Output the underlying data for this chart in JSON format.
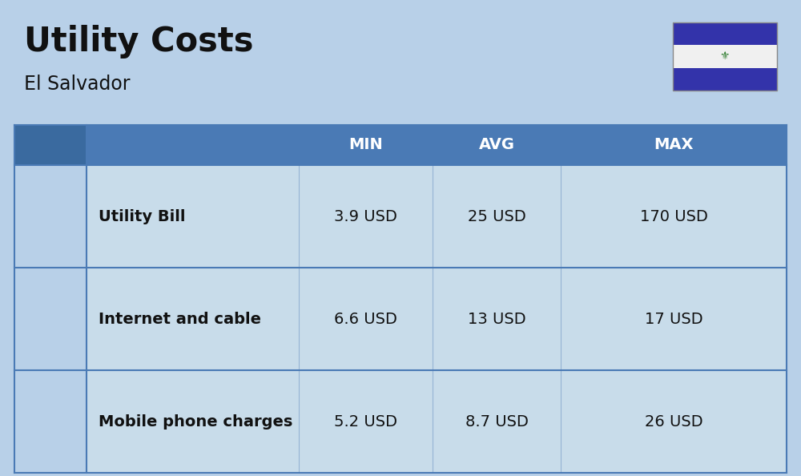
{
  "title": "Utility Costs",
  "subtitle": "El Salvador",
  "background_color": "#b8d0e8",
  "header_bg_color": "#4a7ab5",
  "header_text_color": "#ffffff",
  "row_bg_color": "#c8dcea",
  "icon_col_bg": "#b8d0e8",
  "divider_color": "#4a7ab5",
  "text_color": "#111111",
  "columns": [
    "MIN",
    "AVG",
    "MAX"
  ],
  "rows": [
    {
      "label": "Utility Bill",
      "min": "3.9 USD",
      "avg": "25 USD",
      "max": "170 USD"
    },
    {
      "label": "Internet and cable",
      "min": "6.6 USD",
      "avg": "13 USD",
      "max": "17 USD"
    },
    {
      "label": "Mobile phone charges",
      "min": "5.2 USD",
      "avg": "8.7 USD",
      "max": "26 USD"
    }
  ],
  "flag_blue": "#3333aa",
  "flag_white": "#f0f0f0",
  "title_fontsize": 30,
  "subtitle_fontsize": 17,
  "header_fontsize": 14,
  "cell_fontsize": 14,
  "label_fontsize": 14
}
